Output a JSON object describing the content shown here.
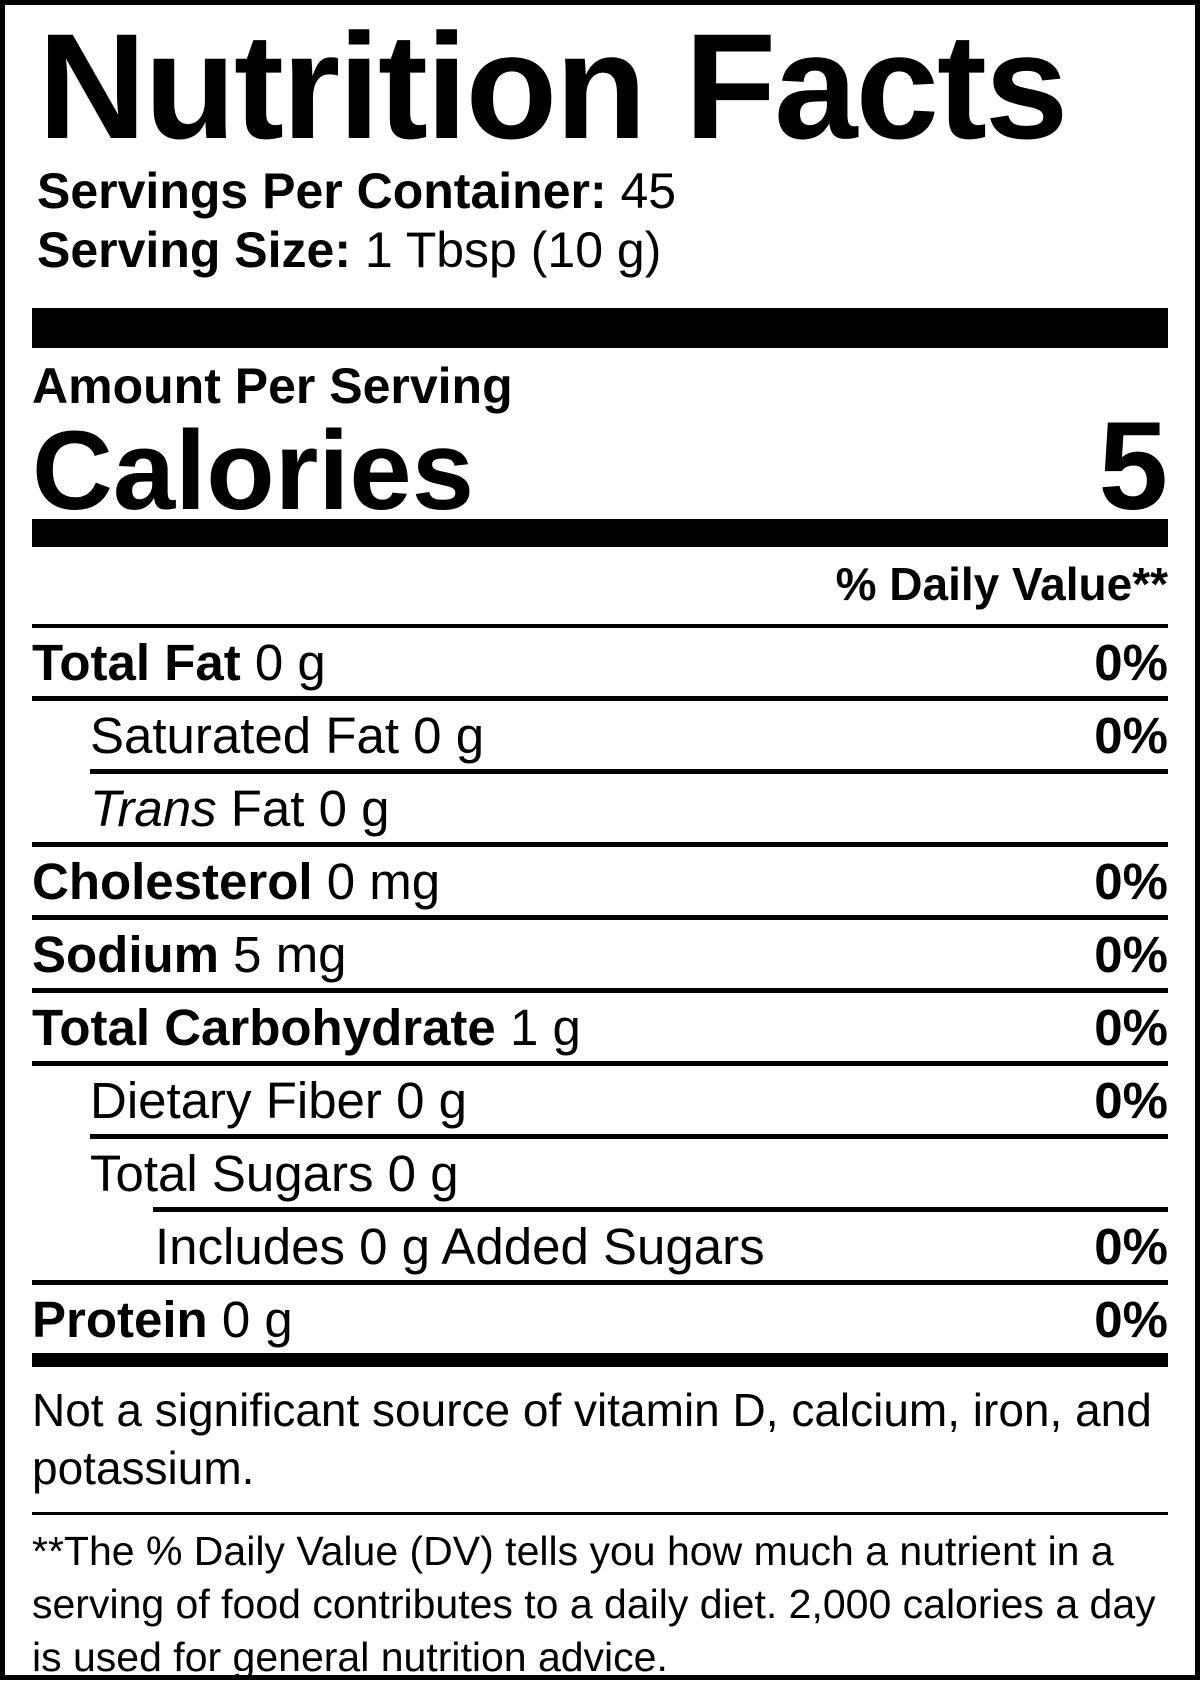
{
  "colors": {
    "text": "#000000",
    "background": "#ffffff"
  },
  "header": {
    "title": "Nutrition Facts",
    "servings_per_container_label": "Servings Per Container:",
    "servings_per_container_value": " 45",
    "serving_size_label": "Serving Size:",
    "serving_size_value": " 1 Tbsp (10 g)"
  },
  "calories_section": {
    "amount_per_serving": "Amount Per Serving",
    "calories_label": "Calories",
    "calories_value": "5"
  },
  "daily_value_header": "% Daily Value**",
  "nutrients": [
    {
      "b": "Total Fat",
      "r": " 0 g",
      "dv": "0%"
    },
    {
      "r": "Saturated Fat 0 g",
      "dv": "0%"
    },
    {
      "i": "Trans",
      "r": " Fat 0 g",
      "dv": ""
    },
    {
      "b": "Cholesterol",
      "r": " 0 mg",
      "dv": "0%"
    },
    {
      "b": "Sodium",
      "r": " 5 mg",
      "dv": "0%"
    },
    {
      "b": "Total Carbohydrate",
      "r": " 1 g",
      "dv": "0%"
    },
    {
      "r": "Dietary Fiber 0 g",
      "dv": "0%"
    },
    {
      "r": "Total Sugars 0 g",
      "dv": ""
    },
    {
      "r": "Includes 0 g Added Sugars",
      "dv": "0%"
    },
    {
      "b": "Protein",
      "r": " 0 g",
      "dv": "0%"
    }
  ],
  "footnotes": {
    "not_significant": "Not a significant source of vitamin D, calcium, iron, and potassium.",
    "daily_value_note": "**The % Daily Value (DV) tells you how much a nutrient in a serving of food contributes to a daily diet. 2,000 calories a day is used for general nutrition advice."
  }
}
